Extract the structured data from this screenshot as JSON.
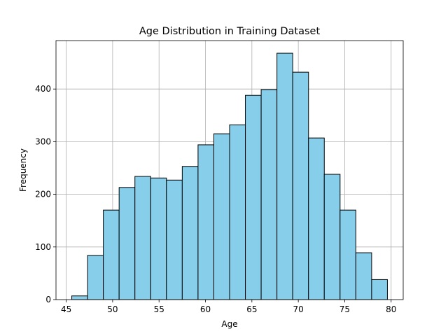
{
  "chart_data": {
    "type": "bar",
    "title": "Age Distribution in Training Dataset",
    "xlabel": "Age",
    "ylabel": "Frequency",
    "bin_edges": [
      45.6,
      47.3,
      49.0,
      50.7,
      52.4,
      54.1,
      55.8,
      57.5,
      59.2,
      60.9,
      62.6,
      64.3,
      66.0,
      67.7,
      69.4,
      71.1,
      72.8,
      74.5,
      76.2,
      77.9,
      79.6
    ],
    "values": [
      7,
      84,
      170,
      213,
      234,
      231,
      227,
      253,
      294,
      315,
      332,
      388,
      399,
      468,
      432,
      307,
      238,
      170,
      89,
      38
    ],
    "xlim": [
      43.9,
      81.3
    ],
    "ylim": [
      0,
      492
    ],
    "xticks": [
      45,
      50,
      55,
      60,
      65,
      70,
      75,
      80
    ],
    "yticks": [
      0,
      100,
      200,
      300,
      400
    ],
    "grid": true,
    "colors": {
      "bar_fill": "#87ceeb",
      "bar_edge": "#000000",
      "grid": "#b0b0b0"
    }
  }
}
